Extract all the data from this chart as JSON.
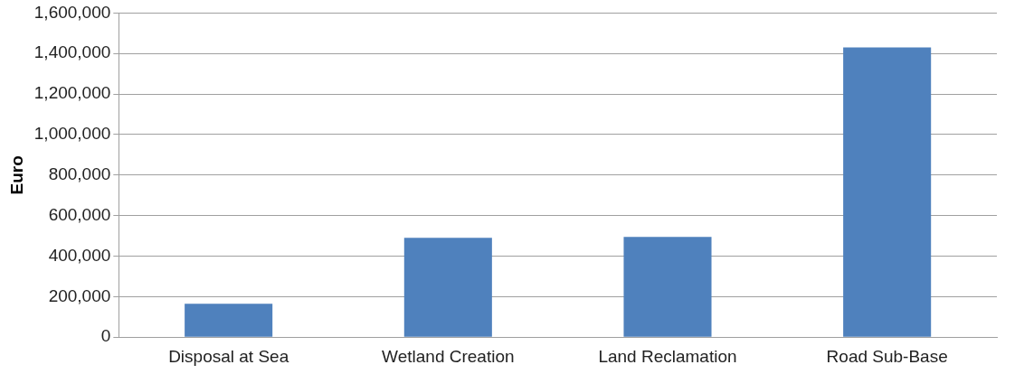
{
  "chart_data": {
    "type": "bar",
    "ylabel": "Euro",
    "categories": [
      "Disposal at Sea",
      "Wetland Creation",
      "Land Reclamation",
      "Road Sub-Base"
    ],
    "values": [
      165000,
      490000,
      495000,
      1430000
    ],
    "color": "#4f81bd",
    "ylim": [
      0,
      1600000
    ],
    "yticks": [
      0,
      {
        "value": 200000,
        "label": "200,000"
      },
      {
        "value": 400000,
        "label": "400,000"
      },
      {
        "value": 600000,
        "label": "600,000"
      },
      {
        "value": 800000,
        "label": "800,000"
      },
      {
        "value": 1000000,
        "label": "1,000,000"
      },
      {
        "value": 1200000,
        "label": "1,200,000"
      },
      {
        "value": 1400000,
        "label": "1,400,000"
      },
      {
        "value": 1600000,
        "label": "1,600,000"
      }
    ],
    "grid": "y",
    "legend": false
  }
}
